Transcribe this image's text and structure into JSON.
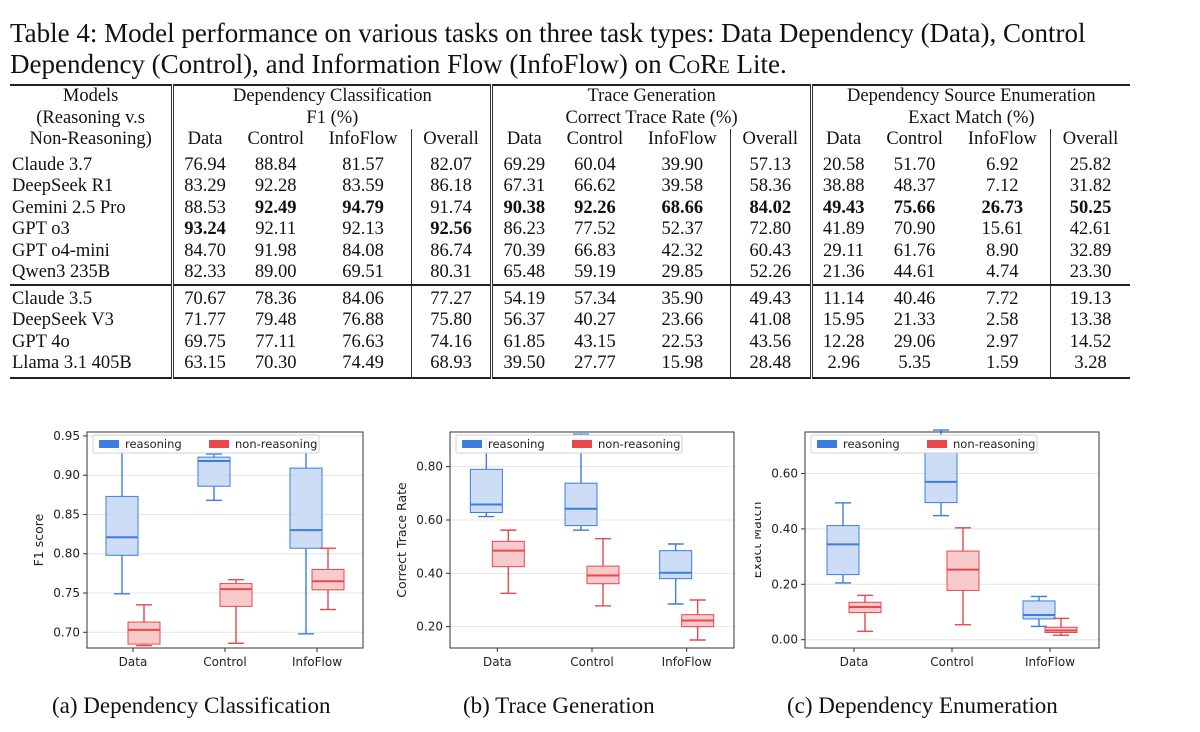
{
  "caption": {
    "part1": "Table 4: Model performance on various tasks on three task types: Data Dependency (Data), Control Dependency (Control), and Information Flow (InfoFlow) on ",
    "core": "CoRe",
    "part2": " Lite."
  },
  "table": {
    "header": {
      "models_l1": "Models",
      "models_l2": "(Reasoning v.s",
      "models_l3": "Non-Reasoning)",
      "groups": [
        {
          "title": "Dependency Classification",
          "metric": "F1 (%)"
        },
        {
          "title": "Trace Generation",
          "metric": "Correct Trace Rate (%)"
        },
        {
          "title": "Dependency Source Enumeration",
          "metric": "Exact Match (%)"
        }
      ],
      "cols": [
        "Data",
        "Control",
        "InfoFlow",
        "Overall"
      ]
    },
    "groups": [
      {
        "rows": [
          {
            "model": "Claude 3.7",
            "values": [
              "76.94",
              "88.84",
              "81.57",
              "82.07",
              "69.29",
              "60.04",
              "39.90",
              "57.13",
              "20.58",
              "51.70",
              "6.92",
              "25.82"
            ],
            "bold": []
          },
          {
            "model": "DeepSeek R1",
            "values": [
              "83.29",
              "92.28",
              "83.59",
              "86.18",
              "67.31",
              "66.62",
              "39.58",
              "58.36",
              "38.88",
              "48.37",
              "7.12",
              "31.82"
            ],
            "bold": []
          },
          {
            "model": "Gemini 2.5 Pro",
            "values": [
              "88.53",
              "92.49",
              "94.79",
              "91.74",
              "90.38",
              "92.26",
              "68.66",
              "84.02",
              "49.43",
              "75.66",
              "26.73",
              "50.25"
            ],
            "bold": [
              1,
              2,
              4,
              5,
              6,
              7,
              8,
              9,
              10,
              11
            ]
          },
          {
            "model": "GPT o3",
            "values": [
              "93.24",
              "92.11",
              "92.13",
              "92.56",
              "86.23",
              "77.52",
              "52.37",
              "72.80",
              "41.89",
              "70.90",
              "15.61",
              "42.61"
            ],
            "bold": [
              0,
              3
            ]
          },
          {
            "model": "GPT o4-mini",
            "values": [
              "84.70",
              "91.98",
              "84.08",
              "86.74",
              "70.39",
              "66.83",
              "42.32",
              "60.43",
              "29.11",
              "61.76",
              "8.90",
              "32.89"
            ],
            "bold": []
          },
          {
            "model": "Qwen3 235B",
            "values": [
              "82.33",
              "89.00",
              "69.51",
              "80.31",
              "65.48",
              "59.19",
              "29.85",
              "52.26",
              "21.36",
              "44.61",
              "4.74",
              "23.30"
            ],
            "bold": []
          }
        ]
      },
      {
        "rows": [
          {
            "model": "Claude 3.5",
            "values": [
              "70.67",
              "78.36",
              "84.06",
              "77.27",
              "54.19",
              "57.34",
              "35.90",
              "49.43",
              "11.14",
              "40.46",
              "7.72",
              "19.13"
            ],
            "bold": []
          },
          {
            "model": "DeepSeek V3",
            "values": [
              "71.77",
              "79.48",
              "76.88",
              "75.80",
              "56.37",
              "40.27",
              "23.66",
              "41.08",
              "15.95",
              "21.33",
              "2.58",
              "13.38"
            ],
            "bold": []
          },
          {
            "model": "GPT 4o",
            "values": [
              "69.75",
              "77.11",
              "76.63",
              "74.16",
              "61.85",
              "43.15",
              "22.53",
              "43.56",
              "12.28",
              "29.06",
              "2.97",
              "14.52"
            ],
            "bold": []
          },
          {
            "model": "Llama 3.1 405B",
            "values": [
              "63.15",
              "70.30",
              "74.49",
              "68.93",
              "39.50",
              "27.77",
              "15.98",
              "28.48",
              "2.96",
              "5.35",
              "1.59",
              "3.28"
            ],
            "bold": []
          }
        ]
      }
    ]
  },
  "colors": {
    "reasoning_line": "#3b7de0",
    "reasoning_fill": "#c6d7f5",
    "nonreasoning_line": "#e8474e",
    "nonreasoning_fill": "#f6c1c3"
  },
  "chart_data": [
    {
      "type": "box",
      "title": "(a) Dependency Classification",
      "xlabel": "",
      "ylabel": "F1 score",
      "categories": [
        "Data",
        "Control",
        "InfoFlow"
      ],
      "ylim": [
        0.68,
        0.955
      ],
      "yticks": [
        0.7,
        0.75,
        0.8,
        0.85,
        0.9,
        0.95
      ],
      "ytick_labels": [
        "0.70",
        "0.75",
        "0.80",
        "0.85",
        "0.90",
        "0.95"
      ],
      "legend": [
        "reasoning",
        "non-reasoning"
      ],
      "legend_position": "top",
      "series": [
        {
          "name": "reasoning",
          "boxes": [
            {
              "min": 0.749,
              "q1": 0.798,
              "median": 0.821,
              "q3": 0.873,
              "max": 0.932
            },
            {
              "min": 0.868,
              "q1": 0.886,
              "median": 0.918,
              "q3": 0.923,
              "max": 0.927
            },
            {
              "min": 0.698,
              "q1": 0.807,
              "median": 0.83,
              "q3": 0.909,
              "max": 0.948
            }
          ]
        },
        {
          "name": "non-reasoning",
          "boxes": [
            {
              "min": 0.683,
              "q1": 0.685,
              "median": 0.703,
              "q3": 0.713,
              "max": 0.735
            },
            {
              "min": 0.686,
              "q1": 0.733,
              "median": 0.755,
              "q3": 0.762,
              "max": 0.767
            },
            {
              "min": 0.729,
              "q1": 0.754,
              "median": 0.765,
              "q3": 0.78,
              "max": 0.807
            }
          ]
        }
      ]
    },
    {
      "type": "box",
      "title": "(b) Trace Generation",
      "xlabel": "",
      "ylabel": "Correct Trace Rate",
      "categories": [
        "Data",
        "Control",
        "InfoFlow"
      ],
      "ylim": [
        0.12,
        0.93
      ],
      "yticks": [
        0.2,
        0.4,
        0.6,
        0.8
      ],
      "ytick_labels": [
        "0.20",
        "0.40",
        "0.60",
        "0.80"
      ],
      "legend": [
        "reasoning",
        "non-reasoning"
      ],
      "legend_position": "top",
      "series": [
        {
          "name": "reasoning",
          "boxes": [
            {
              "min": 0.613,
              "q1": 0.628,
              "median": 0.658,
              "q3": 0.79,
              "max": 0.904
            },
            {
              "min": 0.562,
              "q1": 0.579,
              "median": 0.642,
              "q3": 0.738,
              "max": 0.922
            },
            {
              "min": 0.285,
              "q1": 0.38,
              "median": 0.402,
              "q3": 0.485,
              "max": 0.51
            }
          ]
        },
        {
          "name": "non-reasoning",
          "boxes": [
            {
              "min": 0.325,
              "q1": 0.425,
              "median": 0.485,
              "q3": 0.52,
              "max": 0.562
            },
            {
              "min": 0.278,
              "q1": 0.361,
              "median": 0.392,
              "q3": 0.427,
              "max": 0.53
            },
            {
              "min": 0.15,
              "q1": 0.2,
              "median": 0.223,
              "q3": 0.245,
              "max": 0.3
            }
          ]
        }
      ]
    },
    {
      "type": "box",
      "title": "(c) Dependency Enumeration",
      "xlabel": "",
      "ylabel": "Exact Match",
      "categories": [
        "Data",
        "Control",
        "InfoFlow"
      ],
      "ylim": [
        -0.03,
        0.75
      ],
      "yticks": [
        0.0,
        0.2,
        0.4,
        0.6
      ],
      "ytick_labels": [
        "0.00",
        "0.20",
        "0.40",
        "0.60"
      ],
      "legend": [
        "reasoning",
        "non-reasoning"
      ],
      "legend_position": "top",
      "series": [
        {
          "name": "reasoning",
          "boxes": [
            {
              "min": 0.205,
              "q1": 0.235,
              "median": 0.344,
              "q3": 0.412,
              "max": 0.494
            },
            {
              "min": 0.448,
              "q1": 0.495,
              "median": 0.57,
              "q3": 0.688,
              "max": 0.757
            },
            {
              "min": 0.048,
              "q1": 0.075,
              "median": 0.089,
              "q3": 0.14,
              "max": 0.156
            }
          ]
        },
        {
          "name": "non-reasoning",
          "boxes": [
            {
              "min": 0.03,
              "q1": 0.098,
              "median": 0.118,
              "q3": 0.135,
              "max": 0.16
            },
            {
              "min": 0.054,
              "q1": 0.178,
              "median": 0.253,
              "q3": 0.32,
              "max": 0.404
            },
            {
              "min": 0.016,
              "q1": 0.026,
              "median": 0.033,
              "q3": 0.045,
              "max": 0.077
            }
          ]
        }
      ]
    }
  ]
}
